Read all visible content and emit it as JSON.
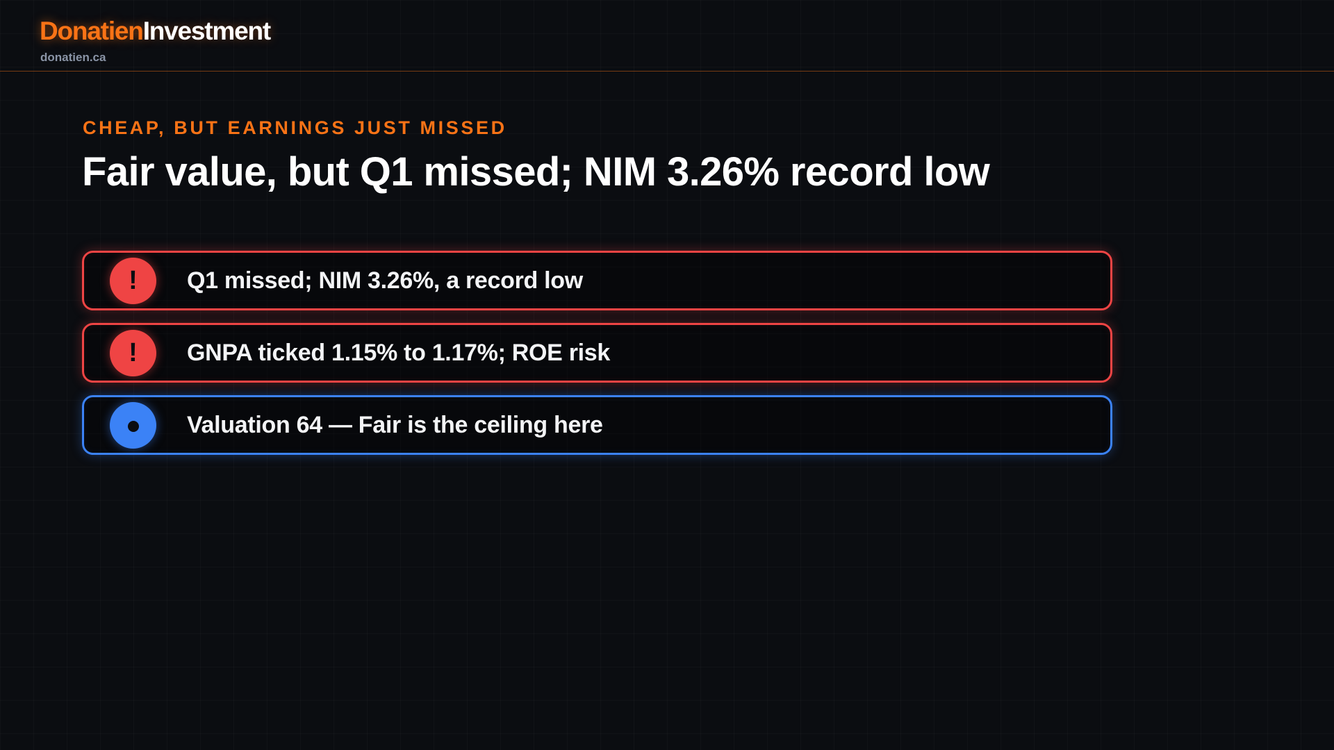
{
  "brand": {
    "name_part1": "Donatien",
    "name_part2": "Investment",
    "domain": "donatien.ca",
    "accent_color": "#f97316"
  },
  "slide": {
    "kicker": "CHEAP, BUT EARNINGS JUST MISSED",
    "title": "Fair value, but Q1 missed; NIM 3.26% record low"
  },
  "points": [
    {
      "text": "Q1 missed; NIM 3.26%, a record low",
      "type": "warning",
      "icon": "exclamation-icon",
      "color": "#ef4444"
    },
    {
      "text": "GNPA ticked 1.15% to 1.17%; ROE risk",
      "type": "warning",
      "icon": "exclamation-icon",
      "color": "#ef4444"
    },
    {
      "text": "Valuation 64 — Fair is the ceiling here",
      "type": "info",
      "icon": "dot-icon",
      "color": "#3b82f6"
    }
  ]
}
